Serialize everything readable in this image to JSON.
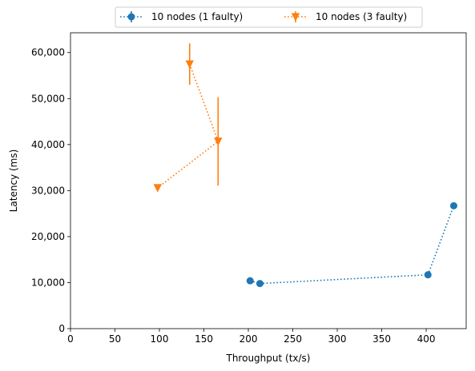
{
  "chart_data": {
    "type": "scatter",
    "xlabel": "Throughput (tx/s)",
    "ylabel": "Latency (ms)",
    "xlim": [
      0,
      445
    ],
    "ylim": [
      0,
      64300
    ],
    "xticks": [
      0,
      50,
      100,
      150,
      200,
      250,
      300,
      350,
      400
    ],
    "yticks": [
      0,
      10000,
      20000,
      30000,
      40000,
      50000,
      60000
    ],
    "xtick_labels": [
      "0",
      "50",
      "100",
      "150",
      "200",
      "250",
      "300",
      "350",
      "400"
    ],
    "ytick_labels": [
      "0",
      "10,000",
      "20,000",
      "30,000",
      "40,000",
      "50,000",
      "60,000"
    ],
    "grid": false,
    "legend_position": "top-center, outside",
    "series": [
      {
        "name": "10 nodes (1 faulty)",
        "color": "#1f77b4",
        "marker": "circle",
        "linestyle": "dotted",
        "points": [
          {
            "x": 202,
            "y": 10400,
            "yerr": 0
          },
          {
            "x": 213,
            "y": 9800,
            "yerr": 0
          },
          {
            "x": 402,
            "y": 11700,
            "yerr": 0
          },
          {
            "x": 431,
            "y": 26700,
            "yerr": 0
          }
        ]
      },
      {
        "name": "10 nodes (3 faulty)",
        "color": "#ff7f0e",
        "marker": "triangle-down",
        "linestyle": "dotted",
        "points": [
          {
            "x": 134,
            "y": 57500,
            "yerr": 4500
          },
          {
            "x": 166,
            "y": 40700,
            "yerr": 9600
          },
          {
            "x": 98,
            "y": 30600,
            "yerr": 0
          }
        ]
      }
    ]
  }
}
